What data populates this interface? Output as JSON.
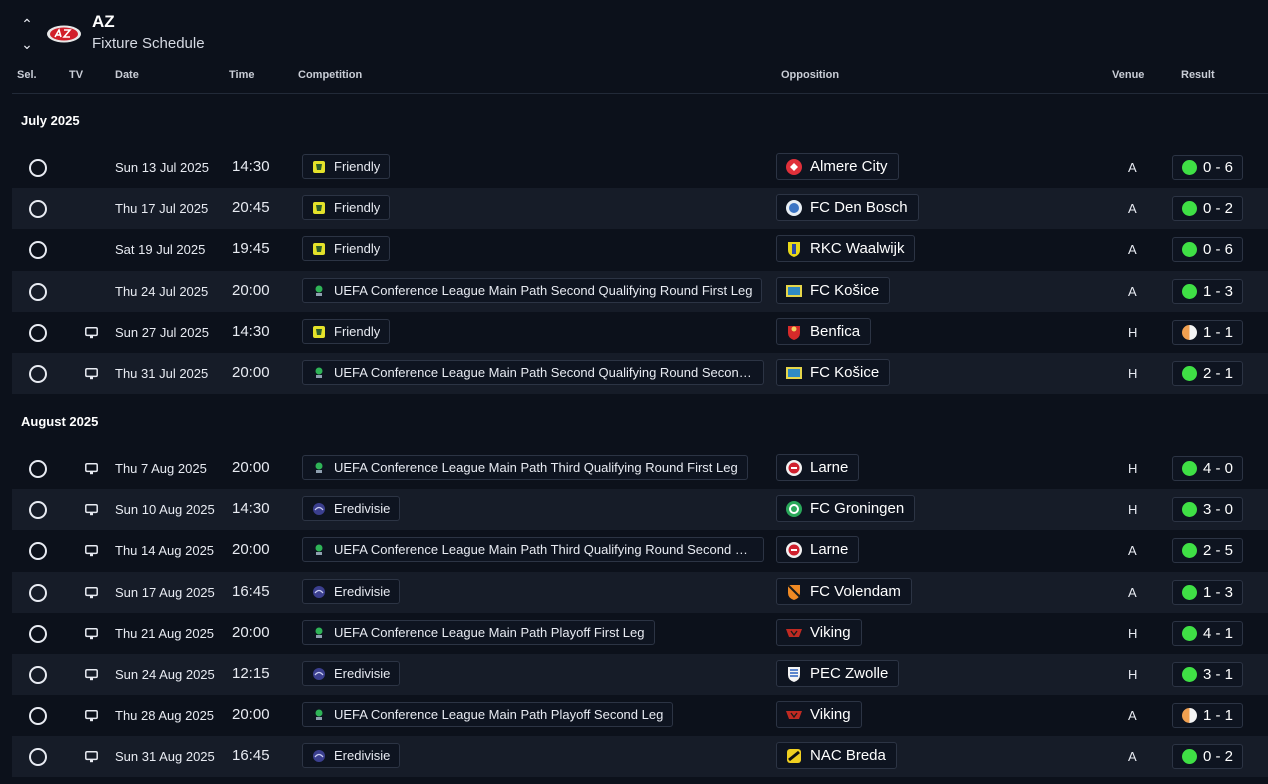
{
  "header": {
    "club_name": "AZ",
    "subtitle": "Fixture Schedule",
    "nav_up": "⌃",
    "nav_down": "⌄"
  },
  "columns": {
    "sel": "Sel.",
    "tv": "TV",
    "date": "Date",
    "time": "Time",
    "competition": "Competition",
    "opposition": "Opposition",
    "venue": "Venue",
    "result": "Result"
  },
  "months": [
    {
      "label": "July 2025",
      "fixtures": [
        {
          "tv": false,
          "date": "Sun 13 Jul 2025",
          "time": "14:30",
          "competition": "Friendly",
          "comp_icon": "friendly-icon",
          "opposition": "Almere City",
          "opp_icon": "almere-city-crest",
          "venue": "A",
          "result": "0 - 6",
          "outcome": "win"
        },
        {
          "tv": false,
          "date": "Thu 17 Jul 2025",
          "time": "20:45",
          "competition": "Friendly",
          "comp_icon": "friendly-icon",
          "opposition": "FC Den Bosch",
          "opp_icon": "fc-den-bosch-crest",
          "venue": "A",
          "result": "0 - 2",
          "outcome": "win"
        },
        {
          "tv": false,
          "date": "Sat 19 Jul 2025",
          "time": "19:45",
          "competition": "Friendly",
          "comp_icon": "friendly-icon",
          "opposition": "RKC Waalwijk",
          "opp_icon": "rkc-waalwijk-crest",
          "venue": "A",
          "result": "0 - 6",
          "outcome": "win"
        },
        {
          "tv": false,
          "date": "Thu 24 Jul 2025",
          "time": "20:00",
          "competition": "UEFA Conference League Main Path Second Qualifying Round First Leg",
          "comp_icon": "conference-league-icon",
          "opposition": "FC Košice",
          "opp_icon": "fc-kosice-crest",
          "venue": "A",
          "result": "1 - 3",
          "outcome": "win"
        },
        {
          "tv": true,
          "date": "Sun 27 Jul 2025",
          "time": "14:30",
          "competition": "Friendly",
          "comp_icon": "friendly-icon",
          "opposition": "Benfica",
          "opp_icon": "benfica-crest",
          "venue": "H",
          "result": "1 - 1",
          "outcome": "draw"
        },
        {
          "tv": true,
          "date": "Thu 31 Jul 2025",
          "time": "20:00",
          "competition": "UEFA Conference League Main Path Second Qualifying Round Second L...",
          "comp_icon": "conference-league-icon",
          "opposition": "FC Košice",
          "opp_icon": "fc-kosice-crest",
          "venue": "H",
          "result": "2 - 1",
          "outcome": "win"
        }
      ]
    },
    {
      "label": "August 2025",
      "fixtures": [
        {
          "tv": true,
          "date": "Thu 7 Aug 2025",
          "time": "20:00",
          "competition": "UEFA Conference League Main Path Third Qualifying Round First Leg",
          "comp_icon": "conference-league-icon",
          "opposition": "Larne",
          "opp_icon": "larne-crest",
          "venue": "H",
          "result": "4 - 0",
          "outcome": "win"
        },
        {
          "tv": true,
          "date": "Sun 10 Aug 2025",
          "time": "14:30",
          "competition": "Eredivisie",
          "comp_icon": "eredivisie-icon",
          "opposition": "FC Groningen",
          "opp_icon": "fc-groningen-crest",
          "venue": "H",
          "result": "3 - 0",
          "outcome": "win"
        },
        {
          "tv": true,
          "date": "Thu 14 Aug 2025",
          "time": "20:00",
          "competition": "UEFA Conference League Main Path Third Qualifying Round Second Leg",
          "comp_icon": "conference-league-icon",
          "opposition": "Larne",
          "opp_icon": "larne-crest",
          "venue": "A",
          "result": "2 - 5",
          "outcome": "win"
        },
        {
          "tv": true,
          "date": "Sun 17 Aug 2025",
          "time": "16:45",
          "competition": "Eredivisie",
          "comp_icon": "eredivisie-icon",
          "opposition": "FC Volendam",
          "opp_icon": "fc-volendam-crest",
          "venue": "A",
          "result": "1 - 3",
          "outcome": "win"
        },
        {
          "tv": true,
          "date": "Thu 21 Aug 2025",
          "time": "20:00",
          "competition": "UEFA Conference League Main Path Playoff First Leg",
          "comp_icon": "conference-league-icon",
          "opposition": "Viking",
          "opp_icon": "viking-crest",
          "venue": "H",
          "result": "4 - 1",
          "outcome": "win"
        },
        {
          "tv": true,
          "date": "Sun 24 Aug 2025",
          "time": "12:15",
          "competition": "Eredivisie",
          "comp_icon": "eredivisie-icon",
          "opposition": "PEC Zwolle",
          "opp_icon": "pec-zwolle-crest",
          "venue": "H",
          "result": "3 - 1",
          "outcome": "win"
        },
        {
          "tv": true,
          "date": "Thu 28 Aug 2025",
          "time": "20:00",
          "competition": "UEFA Conference League Main Path Playoff Second Leg",
          "comp_icon": "conference-league-icon",
          "opposition": "Viking",
          "opp_icon": "viking-crest",
          "venue": "A",
          "result": "1 - 1",
          "outcome": "draw"
        },
        {
          "tv": true,
          "date": "Sun 31 Aug 2025",
          "time": "16:45",
          "competition": "Eredivisie",
          "comp_icon": "eredivisie-icon",
          "opposition": "NAC Breda",
          "opp_icon": "nac-breda-crest",
          "venue": "A",
          "result": "0 - 2",
          "outcome": "win"
        }
      ]
    }
  ],
  "colors": {
    "background": "#0c111b",
    "row_alt": "#161c28",
    "win": "#3fe045",
    "draw": "#f0a050"
  }
}
